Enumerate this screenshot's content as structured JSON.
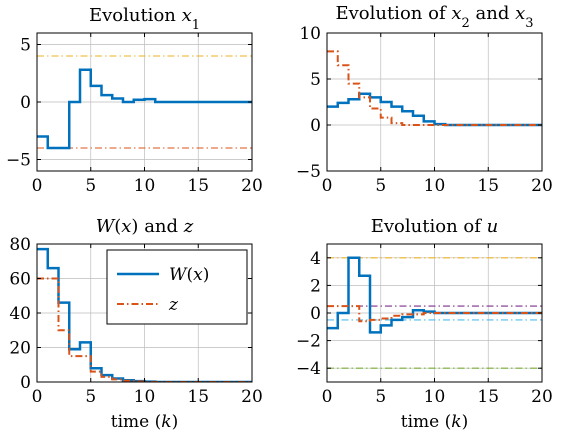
{
  "colors": {
    "blue": "#0072bd",
    "orange": "#d95319",
    "yellow": "#edb120",
    "purple": "#7e2f8e",
    "lightblue": "#4dbeee",
    "green": "#77ac30",
    "grid": "#bdbdbd"
  },
  "chart_data": [
    {
      "type": "line",
      "step": true,
      "title": "Evolution x₁",
      "xlabel": "",
      "ylabel": "",
      "xlim": [
        0,
        20
      ],
      "ylim": [
        -6,
        6
      ],
      "xticks": [
        0,
        5,
        10,
        15,
        20
      ],
      "yticks": [
        -5,
        0,
        5
      ],
      "grid": true,
      "x": [
        0,
        1,
        2,
        3,
        4,
        5,
        6,
        7,
        8,
        9,
        10,
        11,
        12,
        13,
        14,
        15,
        16,
        17,
        18,
        19,
        20
      ],
      "series": [
        {
          "color": "blue",
          "style": "solid",
          "width": 2.5,
          "values": [
            -3,
            -4,
            -4,
            0,
            2.8,
            1.4,
            0.6,
            0.3,
            0,
            0.2,
            0.25,
            0,
            0,
            0,
            0,
            0,
            0,
            0,
            0,
            0,
            0
          ]
        }
      ],
      "hlines": [
        {
          "y": 4,
          "color": "yellow",
          "style": "dashdot"
        },
        {
          "y": -4,
          "color": "orange",
          "style": "dashdot"
        }
      ]
    },
    {
      "type": "line",
      "step": true,
      "title": "Evolution of x₂ and x₃",
      "xlabel": "",
      "ylabel": "",
      "xlim": [
        0,
        20
      ],
      "ylim": [
        -5,
        10
      ],
      "xticks": [
        0,
        5,
        10,
        15,
        20
      ],
      "yticks": [
        -5,
        0,
        5,
        10
      ],
      "grid": true,
      "x": [
        0,
        1,
        2,
        3,
        4,
        5,
        6,
        7,
        8,
        9,
        10,
        11,
        12,
        13,
        14,
        15,
        16,
        17,
        18,
        19,
        20
      ],
      "series": [
        {
          "color": "blue",
          "style": "solid",
          "width": 2.5,
          "values": [
            2,
            2.4,
            2.8,
            3.4,
            3,
            2.5,
            2,
            1.5,
            1,
            0.4,
            0.1,
            0,
            0,
            0,
            0,
            0,
            0,
            0,
            0,
            0,
            0
          ]
        },
        {
          "color": "orange",
          "style": "dashdot",
          "width": 2,
          "values": [
            8,
            6.5,
            4.5,
            3,
            1.8,
            0.8,
            0.2,
            0,
            0,
            0,
            0,
            0,
            0,
            0,
            0,
            0,
            0,
            0,
            0,
            0,
            0
          ]
        }
      ],
      "hlines": []
    },
    {
      "type": "line",
      "step": true,
      "title": "W(x) and z",
      "xlabel": "time (k)",
      "ylabel": "",
      "xlim": [
        0,
        20
      ],
      "ylim": [
        0,
        80
      ],
      "xticks": [
        0,
        5,
        10,
        15,
        20
      ],
      "yticks": [
        0,
        20,
        40,
        60,
        80
      ],
      "grid": true,
      "legend": "top-right",
      "x": [
        0,
        1,
        2,
        3,
        4,
        5,
        6,
        7,
        8,
        9,
        10,
        11,
        12,
        13,
        14,
        15,
        16,
        17,
        18,
        19,
        20
      ],
      "series": [
        {
          "name": "W(x)",
          "color": "blue",
          "style": "solid",
          "width": 2.5,
          "values": [
            77,
            66,
            46,
            19,
            23,
            8,
            4,
            2,
            1,
            0.5,
            0.2,
            0,
            0,
            0,
            0,
            0,
            0,
            0,
            0,
            0,
            0
          ]
        },
        {
          "name": "z",
          "color": "orange",
          "style": "dashdot",
          "width": 2,
          "values": [
            60,
            60,
            30,
            15,
            15,
            6,
            3,
            1.5,
            0.7,
            0.3,
            0.1,
            0,
            0,
            0,
            0,
            0,
            0,
            0,
            0,
            0,
            0
          ]
        }
      ],
      "hlines": []
    },
    {
      "type": "line",
      "step": true,
      "title": "Evolution of u",
      "xlabel": "time (k)",
      "ylabel": "",
      "xlim": [
        0,
        20
      ],
      "ylim": [
        -5,
        5
      ],
      "xticks": [
        0,
        5,
        10,
        15,
        20
      ],
      "yticks": [
        -4,
        -2,
        0,
        2,
        4
      ],
      "grid": true,
      "x": [
        0,
        1,
        2,
        3,
        4,
        5,
        6,
        7,
        8,
        9,
        10,
        11,
        12,
        13,
        14,
        15,
        16,
        17,
        18,
        19,
        20
      ],
      "series": [
        {
          "color": "blue",
          "style": "solid",
          "width": 2.5,
          "values": [
            -1.1,
            0,
            4,
            2.7,
            -1.4,
            -0.9,
            -0.5,
            -0.3,
            0.2,
            0.1,
            0,
            0,
            0,
            0,
            0,
            0,
            0,
            0,
            0,
            0,
            0
          ]
        },
        {
          "color": "orange",
          "style": "dashdot",
          "width": 2,
          "values": [
            0.5,
            0.5,
            0.5,
            -0.6,
            -0.5,
            -0.4,
            -0.2,
            -0.1,
            -0.1,
            0,
            0,
            0,
            0,
            0,
            0,
            0,
            0,
            0,
            0,
            0,
            0
          ]
        }
      ],
      "hlines": [
        {
          "y": 4,
          "color": "yellow",
          "style": "dashdot"
        },
        {
          "y": -4,
          "color": "green",
          "style": "dashdot"
        },
        {
          "y": 0.5,
          "color": "purple",
          "style": "dashdot"
        },
        {
          "y": -0.5,
          "color": "lightblue",
          "style": "dashdot"
        }
      ]
    }
  ]
}
